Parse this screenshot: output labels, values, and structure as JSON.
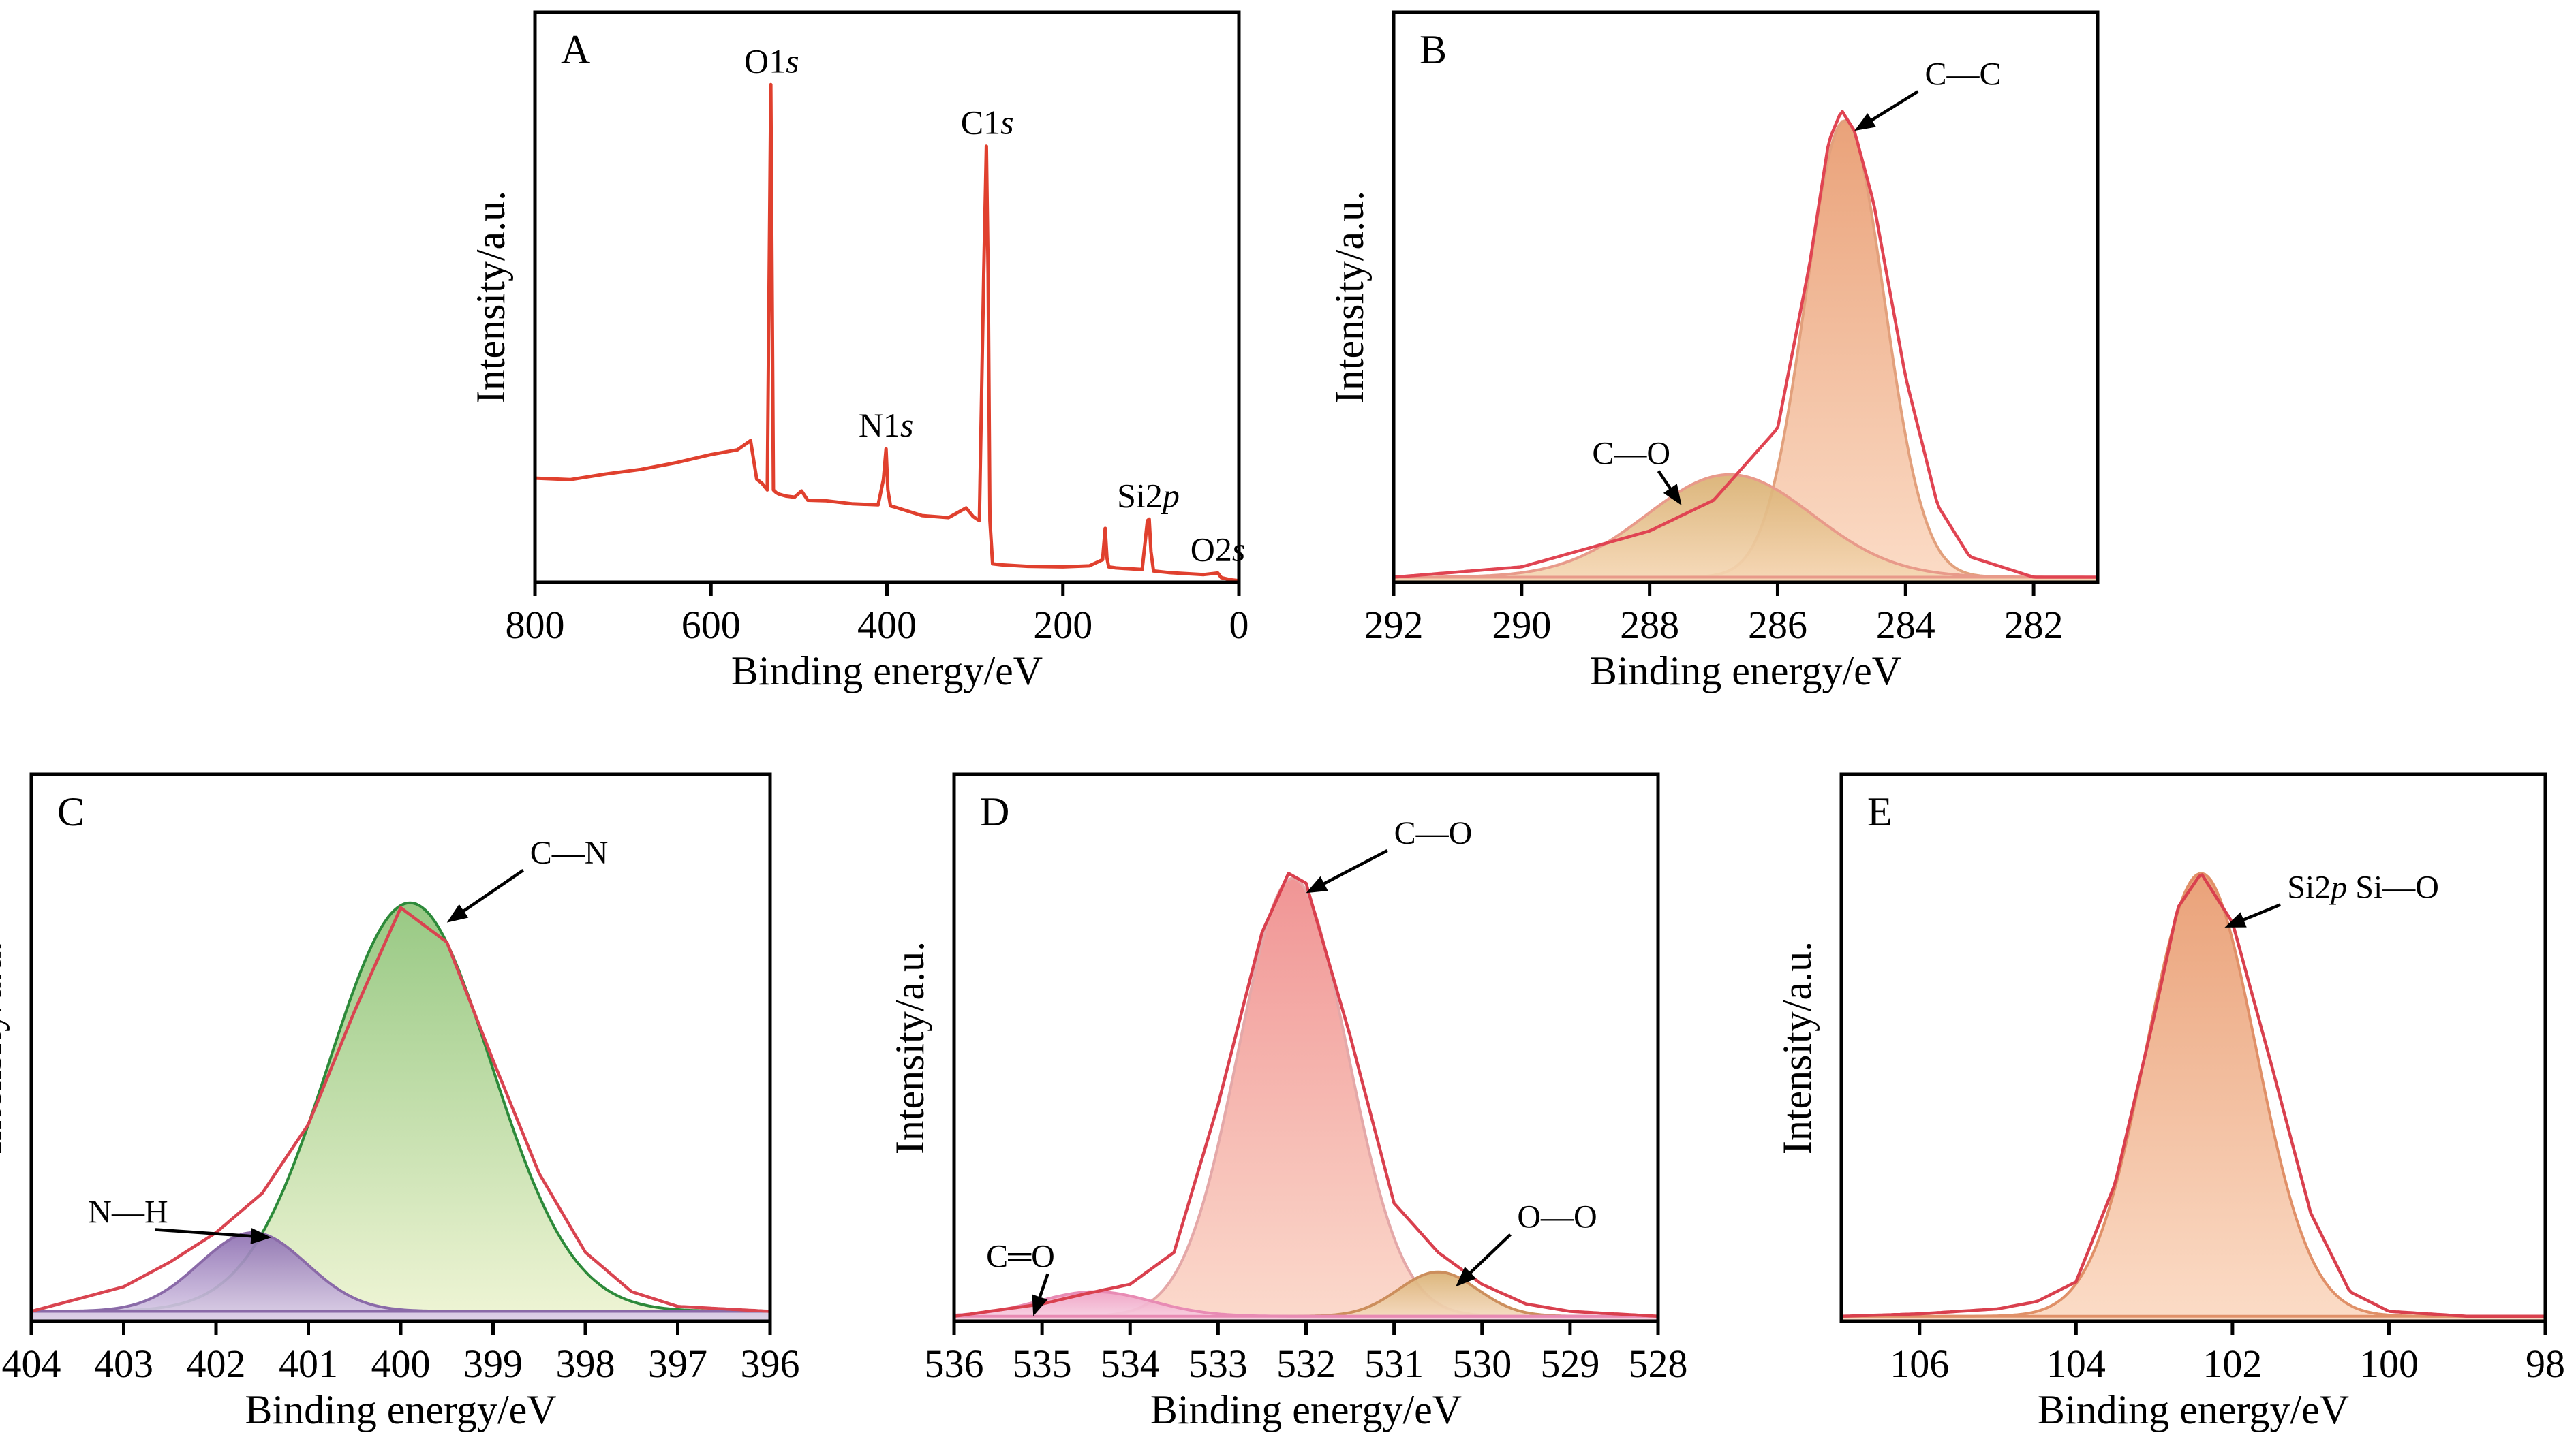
{
  "figure": {
    "panels": [
      {
        "id": "A",
        "panel_label": "A",
        "xlabel": "Binding energy/eV",
        "ylabel": "Intensity/a.u.",
        "xticks": [
          "800",
          "600",
          "400",
          "200",
          "0"
        ]
      },
      {
        "id": "B",
        "panel_label": "B",
        "xlabel": "Binding energy/eV",
        "ylabel": "Intensity/a.u.",
        "xticks": [
          "292",
          "290",
          "288",
          "286",
          "284",
          "282"
        ]
      },
      {
        "id": "C",
        "panel_label": "C",
        "xlabel": "Binding energy/eV",
        "ylabel": "Intensity/a.u.",
        "xticks": [
          "404",
          "403",
          "402",
          "401",
          "400",
          "399",
          "398",
          "397",
          "396"
        ]
      },
      {
        "id": "D",
        "panel_label": "D",
        "xlabel": "Binding energy/eV",
        "ylabel": "Intensity/a.u.",
        "xticks": [
          "536",
          "535",
          "534",
          "533",
          "532",
          "531",
          "530",
          "529",
          "528"
        ]
      },
      {
        "id": "E",
        "panel_label": "E",
        "xlabel": "Binding energy/eV",
        "ylabel": "Intensity/a.u.",
        "xticks": [
          "106",
          "104",
          "102",
          "100",
          "98"
        ]
      }
    ]
  },
  "chart_data": [
    {
      "id": "A",
      "type": "line",
      "panel_label": "A",
      "xlabel": "Binding energy/eV",
      "ylabel": "Intensity/a.u.",
      "xlim": [
        800,
        0
      ],
      "x_reversed": true,
      "ylim": [
        0,
        100
      ],
      "grid": false,
      "x_ticks": [
        800,
        600,
        400,
        200,
        0
      ],
      "line_color": "#e0402e",
      "series": [
        {
          "x": [
            800,
            760,
            720,
            680,
            640,
            600,
            570,
            555,
            548,
            542,
            536,
            532,
            529,
            526,
            523,
            515,
            505,
            497,
            490,
            470,
            440,
            410,
            404,
            401,
            399,
            396,
            390,
            360,
            330,
            310,
            302,
            295,
            290,
            287,
            285,
            283,
            280,
            270,
            240,
            200,
            170,
            155,
            152,
            150,
            148,
            140,
            130,
            110,
            104,
            102,
            100,
            97,
            80,
            40,
            24,
            20,
            10,
            0
          ],
          "y": [
            20.3,
            20.0,
            21.1,
            22.0,
            23.3,
            24.9,
            25.8,
            27.6,
            20.1,
            19.3,
            18.0,
            97.0,
            18.0,
            17.5,
            17.2,
            16.8,
            16.6,
            17.8,
            16.0,
            15.9,
            15.3,
            15.1,
            20.0,
            26.0,
            18.0,
            14.9,
            14.6,
            13.0,
            12.6,
            14.5,
            12.8,
            12.0,
            60.0,
            85.0,
            60.0,
            12.0,
            3.6,
            3.4,
            3.1,
            3.0,
            3.2,
            4.4,
            10.5,
            4.8,
            3.0,
            2.8,
            2.7,
            2.5,
            12.0,
            12.3,
            6.0,
            2.2,
            1.9,
            1.5,
            1.8,
            0.9,
            0.5,
            0.3
          ]
        }
      ],
      "annotations": [
        {
          "text": "O1",
          "suffix": "s",
          "x": 531,
          "y": 97
        },
        {
          "text": "C1",
          "suffix": "s",
          "x": 286,
          "y": 85
        },
        {
          "text": "N1",
          "suffix": "s",
          "x": 401,
          "y": 26
        },
        {
          "text": "Si2",
          "suffix": "p",
          "x": 103,
          "y": 12.3
        },
        {
          "text": "O2",
          "suffix": "s",
          "x": 24,
          "y": 1.8
        }
      ]
    },
    {
      "id": "B",
      "type": "area",
      "panel_label": "B",
      "xlabel": "Binding energy/eV",
      "ylabel": "Intensity/a.u.",
      "xlim": [
        292,
        281
      ],
      "x_reversed": true,
      "ylim": [
        0,
        100
      ],
      "grid": false,
      "x_ticks": [
        292,
        290,
        288,
        286,
        284,
        282
      ],
      "baseline": 1,
      "envelope_color": "#e04452",
      "series": [
        {
          "name": "C—C",
          "center": 284.95,
          "height": 89,
          "sigma": 0.62,
          "fill_top": "#e89a6e",
          "fill_bottom": "#fbd9c2",
          "edge": "#e2a07c"
        },
        {
          "name": "C—O",
          "center": 286.75,
          "height": 20,
          "sigma": 1.3,
          "fill_top": "#d9b071",
          "fill_bottom": "#f6d8b6",
          "edge": "#e89a8a"
        }
      ],
      "envelope": {
        "x": [
          292,
          290,
          288,
          287,
          286,
          285.5,
          285.2,
          285,
          284.8,
          284.5,
          284,
          283.5,
          283,
          282,
          281
        ],
        "y": [
          1,
          3,
          10,
          16,
          30,
          62,
          86,
          92,
          88,
          74,
          40,
          15,
          5,
          1,
          1
        ]
      },
      "annotations": [
        {
          "text": "C—C",
          "target": [
            284.8,
            88
          ],
          "label_pos": [
            283.7,
            97
          ]
        },
        {
          "text": "C—O",
          "target": [
            287.5,
            15
          ],
          "label_pos": [
            288.5,
            23
          ]
        }
      ]
    },
    {
      "id": "C",
      "type": "area",
      "panel_label": "C",
      "xlabel": "Binding energy/eV",
      "ylabel": "Intensity/a.u.",
      "xlim": [
        404,
        396
      ],
      "x_reversed": true,
      "ylim": [
        0,
        100
      ],
      "grid": false,
      "x_ticks": [
        404,
        403,
        402,
        401,
        400,
        399,
        398,
        397,
        396
      ],
      "baseline": 2,
      "envelope_color": "#d94450",
      "series": [
        {
          "name": "C—N",
          "center": 399.9,
          "height": 83,
          "sigma": 0.88,
          "fill_top": "#8fc479",
          "fill_bottom": "#eef4d2",
          "edge": "#2d8a3a"
        },
        {
          "name": "N—H",
          "center": 401.6,
          "height": 16,
          "sigma": 0.58,
          "fill_top": "#8d6fb1",
          "fill_bottom": "#ddd0ea",
          "edge": "#8a6aa8"
        }
      ],
      "envelope": {
        "x": [
          404,
          403,
          402.5,
          402,
          401.5,
          401,
          400.5,
          400,
          399.5,
          399,
          398.5,
          398,
          397.5,
          397,
          396
        ],
        "y": [
          2,
          7,
          12,
          18,
          26,
          40,
          63,
          84,
          77,
          53,
          30,
          14,
          6,
          3,
          2
        ]
      },
      "annotations": [
        {
          "text": "C—N",
          "target": [
            399.5,
            81
          ],
          "label_pos": [
            398.6,
            93
          ]
        },
        {
          "text": "N—H",
          "target": [
            401.4,
            17
          ],
          "label_pos": [
            403.1,
            20
          ]
        }
      ]
    },
    {
      "id": "D",
      "type": "area",
      "panel_label": "D",
      "xlabel": "Binding energy/eV",
      "ylabel": "Intensity/a.u.",
      "xlim": [
        536,
        528
      ],
      "x_reversed": true,
      "ylim": [
        0,
        100
      ],
      "grid": false,
      "x_ticks": [
        536,
        535,
        534,
        533,
        532,
        531,
        530,
        529,
        528
      ],
      "baseline": 1,
      "envelope_color": "#d9404e",
      "series": [
        {
          "name": "C—O",
          "center": 532.15,
          "height": 89,
          "sigma": 0.62,
          "fill_top": "#ef8c8c",
          "fill_bottom": "#fbd7c8",
          "edge": "#e4a8a8"
        },
        {
          "name": "O—O",
          "center": 530.5,
          "height": 9,
          "sigma": 0.45,
          "fill_top": "#d9b071",
          "fill_bottom": "#f7dec6",
          "edge": "#cc8e5c"
        },
        {
          "name": "C═O",
          "center": 534.4,
          "height": 5,
          "sigma": 0.65,
          "fill_top": "#ef9fc2",
          "fill_bottom": "#f8d6e6",
          "edge": "#e88bb4"
        }
      ],
      "envelope": {
        "x": [
          536,
          535,
          534.5,
          534,
          533.5,
          533,
          532.5,
          532.2,
          532,
          531.5,
          531,
          530.5,
          530,
          529.5,
          529,
          528
        ],
        "y": [
          1,
          3.5,
          5.6,
          7.5,
          14,
          44,
          79,
          91,
          89,
          58,
          24,
          14,
          7.5,
          3.5,
          2,
          1
        ]
      },
      "annotations": [
        {
          "text": "C—O",
          "target": [
            532,
            87
          ],
          "label_pos": [
            531,
            97
          ]
        },
        {
          "text": "O—O",
          "target": [
            530.3,
            7
          ],
          "label_pos": [
            529.6,
            19
          ]
        },
        {
          "text": "C═O",
          "target": [
            535.1,
            1
          ],
          "label_pos": [
            535.4,
            11
          ]
        }
      ]
    },
    {
      "id": "E",
      "type": "area",
      "panel_label": "E",
      "xlabel": "Binding energy/eV",
      "ylabel": "Intensity/a.u.",
      "xlim": [
        107,
        98
      ],
      "x_reversed": true,
      "ylim": [
        0,
        100
      ],
      "grid": false,
      "x_ticks": [
        106,
        104,
        102,
        100,
        98
      ],
      "baseline": 1,
      "envelope_color": "#d9404e",
      "series": [
        {
          "name": "Si2p Si—O",
          "center": 102.4,
          "height": 90,
          "sigma": 0.7,
          "fill_top": "#e89a6e",
          "fill_bottom": "#fbd9c2",
          "edge": "#e09068"
        }
      ],
      "envelope": {
        "x": [
          107,
          106,
          105,
          104.5,
          104,
          103.5,
          103,
          102.7,
          102.4,
          102,
          101.5,
          101,
          100.5,
          100,
          99,
          98
        ],
        "y": [
          1,
          1.5,
          2.5,
          4,
          8,
          28,
          62,
          84,
          91,
          81,
          52,
          22,
          6,
          2,
          1,
          1
        ]
      },
      "annotations": [
        {
          "text": "Si2",
          "suffix": "p",
          "rest": " Si—O",
          "target": [
            102.1,
            80
          ],
          "label_pos": [
            101.3,
            86
          ]
        }
      ]
    }
  ]
}
